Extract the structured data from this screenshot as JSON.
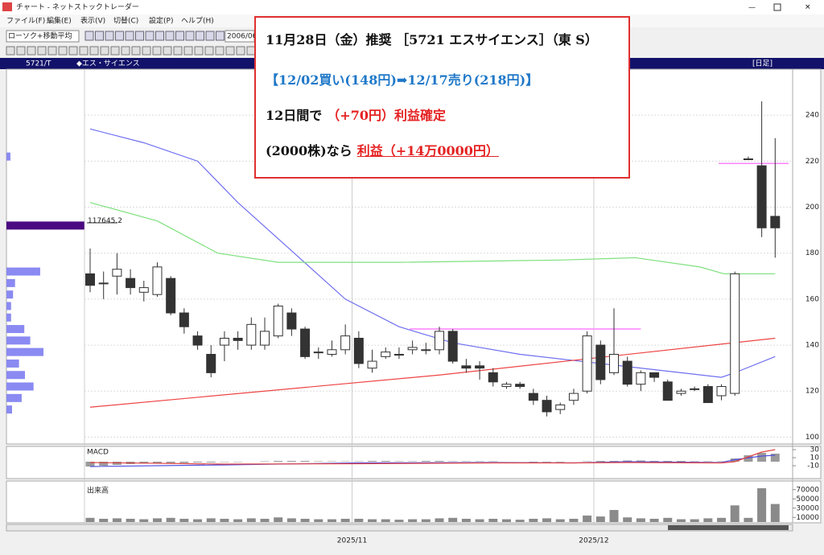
{
  "window": {
    "title": "チャート - ネットストックトレーダー",
    "menu": [
      "ファイル(F)",
      "編集(E)",
      "表示(V)",
      "切替(C)",
      "設定(P)",
      "ヘルプ(H)"
    ],
    "toolbar": {
      "indicator": "ローソク+移動平均",
      "date": "2006/06"
    },
    "header": {
      "code": "5721/T",
      "name": "◆エス・サイエンス",
      "period": "[日足]"
    }
  },
  "notice": {
    "lines": [
      [
        {
          "text": "11月28日（金）推奨 ［5721 エスサイエンス］（東 S）",
          "color": "#111111"
        }
      ],
      [
        {
          "text": "【12/02買い(148円)➡12/17売り(218円)】",
          "color": "#1f78c8"
        }
      ],
      [
        {
          "text": "12日間で",
          "color": "#111111"
        },
        {
          "text": "（+70円）利益確定",
          "color": "#e52222"
        }
      ],
      [
        {
          "text": "(2000株)なら",
          "color": "#111111"
        },
        {
          "text": "利益（+14万0000円）",
          "color": "#e52222",
          "underline": true
        }
      ]
    ]
  },
  "chart_data": [
    {
      "type": "candlestick",
      "xlim": [
        -0.42,
        52.3
      ],
      "xticks": [
        {
          "value": 19.5,
          "label": "2025/11"
        },
        {
          "value": 37.5,
          "label": "2025/12"
        }
      ],
      "ylim": [
        97,
        260
      ],
      "yticks": [
        100,
        120,
        140,
        160,
        180,
        200,
        220,
        240
      ],
      "grid": true,
      "up_color": "#ffffff",
      "down_color": "#333333",
      "open": [
        171,
        167,
        170,
        169,
        163,
        162,
        169,
        154,
        144,
        136,
        140,
        143,
        140,
        140,
        144,
        154,
        147,
        137,
        136,
        138,
        143,
        130,
        135,
        136,
        138,
        138,
        138,
        146,
        131,
        131,
        128,
        122,
        123,
        119,
        116,
        112,
        116,
        120,
        140,
        128,
        133,
        123,
        128,
        124,
        119,
        121,
        122,
        118,
        119,
        221,
        218,
        196
      ],
      "high": [
        182,
        172,
        180,
        173,
        168,
        176,
        170,
        156,
        146,
        140,
        146,
        146,
        152,
        152,
        158,
        156,
        148,
        139,
        142,
        149,
        146,
        138,
        139,
        139,
        142,
        141,
        148,
        147,
        134,
        133,
        130,
        124,
        124,
        121,
        118,
        115,
        121,
        146,
        142,
        156,
        135,
        129,
        128,
        125,
        121,
        122,
        123,
        123,
        172,
        222,
        246,
        230
      ],
      "low": [
        163,
        160,
        162,
        162,
        159,
        161,
        153,
        145,
        138,
        126,
        133,
        138,
        138,
        138,
        143,
        144,
        134,
        134,
        135,
        136,
        130,
        128,
        134,
        134,
        136,
        136,
        136,
        132,
        128,
        125,
        122,
        121,
        121,
        114,
        109,
        110,
        114,
        119,
        123,
        127,
        122,
        120,
        124,
        116,
        118,
        120,
        115,
        116,
        118,
        221,
        187,
        178
      ],
      "close": [
        166,
        167,
        173,
        165,
        165,
        174,
        154,
        148,
        140,
        128,
        143,
        142,
        149,
        146,
        157,
        147,
        135,
        137,
        138,
        144,
        132,
        133,
        137,
        136,
        139,
        138,
        146,
        133,
        130,
        130,
        124,
        123,
        122,
        116,
        111,
        114,
        119,
        144,
        125,
        136,
        123,
        128,
        126,
        116,
        120,
        121,
        115,
        122,
        171,
        221,
        191,
        191
      ],
      "lines": [
        {
          "color": "#6f6ff0",
          "x": [
            0,
            4,
            8,
            11,
            15,
            19,
            23,
            27,
            32,
            38,
            44,
            47,
            48,
            51
          ],
          "values": [
            234,
            228,
            220,
            202,
            181,
            160,
            148,
            141,
            136,
            132,
            128,
            126,
            128,
            135
          ]
        },
        {
          "color": "#7ee07e",
          "x": [
            0,
            5,
            9.5,
            14,
            23,
            35,
            40.6,
            45.4,
            47.2,
            51
          ],
          "values": [
            202,
            194,
            180,
            176,
            176,
            177,
            178,
            174,
            171,
            171
          ]
        },
        {
          "color": "#ee4444",
          "x": [
            0,
            26,
            51
          ],
          "values": [
            113,
            127,
            143
          ]
        }
      ],
      "levels": [
        {
          "value": 147,
          "x": [
            23.8,
            41
          ],
          "color": "#ff80ff"
        },
        {
          "value": 219,
          "x": [
            46.8,
            52
          ],
          "color": "#ff80ff"
        }
      ],
      "price_volume": {
        "color": "#8a8af2",
        "highlight_color": "#4b0a82",
        "xlim": [
          0,
          118000
        ],
        "prices": [
          222,
          192,
          172,
          167,
          162,
          157,
          152,
          147,
          142,
          137,
          132,
          127,
          122,
          117,
          112
        ],
        "values": [
          6000,
          117645.2,
          51000,
          13000,
          10000,
          7000,
          7000,
          27000,
          36000,
          56000,
          19000,
          28000,
          41000,
          23000,
          8500
        ]
      }
    },
    {
      "type": "macd",
      "title": "MACD",
      "ylim": [
        -42,
        38
      ],
      "yticks": [
        30,
        10,
        -10
      ],
      "color": "#9a9a9a",
      "values": [
        -12,
        -10,
        -8,
        -6,
        -5,
        -4,
        -3,
        -3,
        -2,
        -2,
        -1,
        -1,
        0,
        1,
        2,
        2,
        2,
        1,
        1,
        1,
        1,
        2,
        2,
        1,
        1,
        2,
        2,
        1,
        1,
        1,
        1,
        0,
        0,
        -1,
        -1,
        -1,
        0,
        1,
        2,
        2,
        3,
        3,
        2,
        2,
        2,
        1,
        1,
        1,
        8,
        16,
        22,
        20
      ],
      "lines": [
        {
          "color": "#4f4fe0",
          "x": [
            0,
            10,
            20,
            30,
            36,
            40,
            47,
            48,
            50,
            51
          ],
          "values": [
            -12,
            -8,
            -3,
            -2,
            -3,
            0,
            -2,
            5,
            14,
            16
          ]
        },
        {
          "color": "#e04444",
          "x": [
            0,
            10,
            20,
            30,
            36,
            40,
            47,
            48,
            50,
            51
          ],
          "values": [
            -2,
            -6,
            -5,
            -3,
            -3,
            -2,
            -3,
            0,
            24,
            30
          ]
        }
      ]
    },
    {
      "type": "bar",
      "title": "出来高",
      "ylim": [
        0,
        80000
      ],
      "yticks": [
        70000,
        50000,
        30000,
        10000
      ],
      "color": "#8a8a8a",
      "values": [
        9000,
        7000,
        8000,
        7000,
        6000,
        8000,
        9000,
        7000,
        6000,
        8000,
        7000,
        6000,
        8000,
        7000,
        10000,
        8000,
        7000,
        6000,
        6000,
        7000,
        7000,
        6000,
        6000,
        5000,
        6000,
        6000,
        8000,
        9000,
        7000,
        6000,
        7000,
        6000,
        5000,
        7000,
        8000,
        6000,
        7000,
        14000,
        12000,
        26000,
        10000,
        8000,
        7000,
        9000,
        6000,
        6000,
        8000,
        9000,
        36000,
        9000,
        73000,
        39000
      ]
    }
  ]
}
